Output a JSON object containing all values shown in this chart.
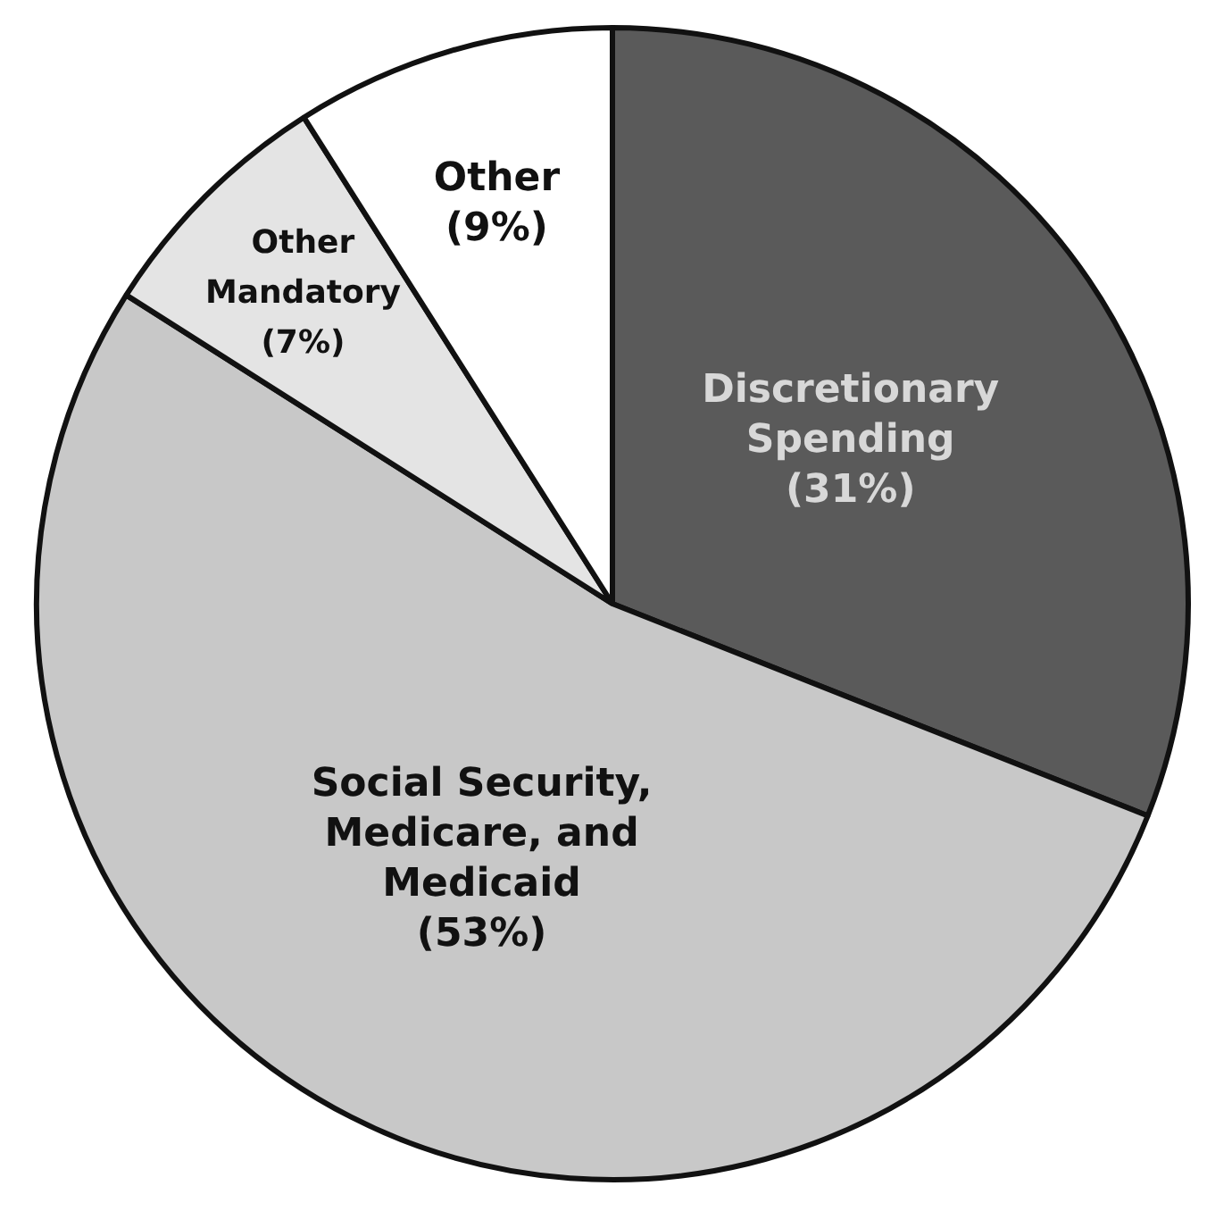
{
  "chart_data": {
    "type": "pie",
    "categories": [
      "Discretionary Spending",
      "Social Security, Medicare, and Medicaid",
      "Other Mandatory",
      "Other"
    ],
    "values": [
      31,
      53,
      7,
      9
    ],
    "colors": [
      "#5a5a5a",
      "#c8c8c8",
      "#e4e4e4",
      "#ffffff"
    ],
    "value_labels": [
      "(31%)",
      "(53%)",
      "(7%)",
      "(9%)"
    ],
    "legend": false
  }
}
